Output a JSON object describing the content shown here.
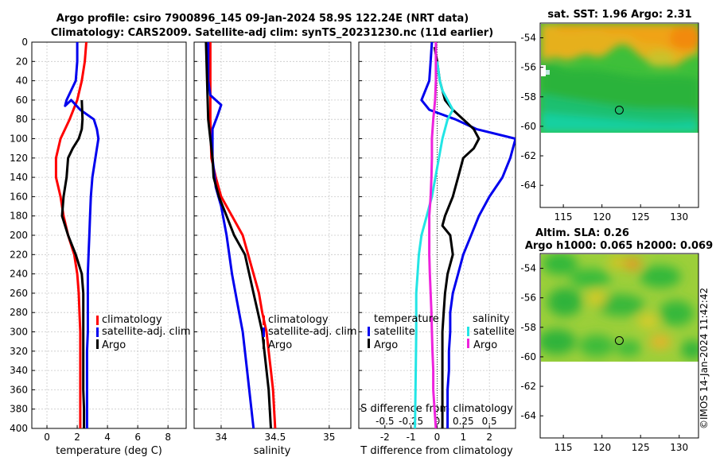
{
  "header": {
    "title_line1": "Argo profile: csiro 7900896_145 09-Jan-2024 58.9S 122.24E (NRT data)",
    "title_line2": "Climatology: CARS2009. Satellite-adj clim: synTS_20231230.nc (11d earlier)"
  },
  "credit": "©IMOS 14-Jan-2024 11:42:42",
  "colors": {
    "climatology": "#ff0000",
    "satellite": "#0000ee",
    "argo": "#000000",
    "sal_satellite": "#22e5e5",
    "sal_argo": "#ee22dd"
  },
  "chart_data": [
    {
      "type": "line",
      "name": "temperature",
      "xlabel": "temperature (deg C)",
      "ylabel": "",
      "xlim": [
        -1,
        9.2
      ],
      "ylim": [
        400,
        0
      ],
      "xticks": [
        0,
        2,
        4,
        6,
        8
      ],
      "yticks": [
        0,
        20,
        40,
        60,
        80,
        100,
        120,
        140,
        160,
        180,
        200,
        220,
        240,
        260,
        280,
        300,
        320,
        340,
        360,
        380,
        400
      ],
      "legend": [
        "climatology",
        "satellite-adj. clim",
        "Argo"
      ],
      "series": [
        {
          "name": "climatology",
          "color": "#ff0000",
          "points": [
            [
              2.6,
              0
            ],
            [
              2.5,
              20
            ],
            [
              2.3,
              40
            ],
            [
              2.0,
              60
            ],
            [
              1.5,
              80
            ],
            [
              0.9,
              100
            ],
            [
              0.6,
              120
            ],
            [
              0.6,
              140
            ],
            [
              0.9,
              160
            ],
            [
              1.1,
              180
            ],
            [
              1.4,
              200
            ],
            [
              1.8,
              220
            ],
            [
              2.0,
              240
            ],
            [
              2.1,
              260
            ],
            [
              2.15,
              280
            ],
            [
              2.2,
              300
            ],
            [
              2.2,
              320
            ],
            [
              2.2,
              340
            ],
            [
              2.2,
              360
            ],
            [
              2.2,
              380
            ],
            [
              2.2,
              400
            ]
          ]
        },
        {
          "name": "satellite-adj. clim",
          "color": "#0000ee",
          "points": [
            [
              2.0,
              0
            ],
            [
              2.0,
              20
            ],
            [
              1.9,
              40
            ],
            [
              1.3,
              60
            ],
            [
              1.2,
              66
            ],
            [
              1.6,
              60
            ],
            [
              2.2,
              70
            ],
            [
              3.1,
              80
            ],
            [
              3.3,
              90
            ],
            [
              3.4,
              100
            ],
            [
              3.2,
              120
            ],
            [
              3.0,
              140
            ],
            [
              2.9,
              160
            ],
            [
              2.85,
              180
            ],
            [
              2.8,
              200
            ],
            [
              2.75,
              220
            ],
            [
              2.7,
              240
            ],
            [
              2.7,
              260
            ],
            [
              2.7,
              280
            ],
            [
              2.7,
              300
            ],
            [
              2.65,
              320
            ],
            [
              2.65,
              340
            ],
            [
              2.65,
              360
            ],
            [
              2.65,
              380
            ],
            [
              2.65,
              400
            ]
          ]
        },
        {
          "name": "Argo",
          "color": "#000000",
          "points": [
            [
              2.3,
              60
            ],
            [
              2.35,
              80
            ],
            [
              2.3,
              90
            ],
            [
              2.1,
              100
            ],
            [
              1.7,
              110
            ],
            [
              1.4,
              120
            ],
            [
              1.3,
              140
            ],
            [
              1.1,
              160
            ],
            [
              1.0,
              180
            ],
            [
              1.4,
              200
            ],
            [
              1.9,
              220
            ],
            [
              2.3,
              240
            ],
            [
              2.4,
              260
            ],
            [
              2.4,
              280
            ],
            [
              2.4,
              300
            ],
            [
              2.4,
              320
            ],
            [
              2.4,
              340
            ],
            [
              2.4,
              360
            ],
            [
              2.45,
              380
            ],
            [
              2.45,
              400
            ]
          ]
        }
      ]
    },
    {
      "type": "line",
      "name": "salinity",
      "xlabel": "salinity",
      "ylabel": "",
      "xlim": [
        33.75,
        35.2
      ],
      "ylim": [
        400,
        0
      ],
      "xticks": [
        34,
        34.5,
        35
      ],
      "legend": [
        "climatology",
        "satellite-adj. clim",
        "Argo"
      ],
      "series": [
        {
          "name": "climatology",
          "color": "#ff0000",
          "points": [
            [
              33.9,
              0
            ],
            [
              33.9,
              20
            ],
            [
              33.9,
              40
            ],
            [
              33.9,
              80
            ],
            [
              33.91,
              120
            ],
            [
              33.95,
              140
            ],
            [
              34.0,
              160
            ],
            [
              34.1,
              180
            ],
            [
              34.2,
              200
            ],
            [
              34.25,
              220
            ],
            [
              34.3,
              240
            ],
            [
              34.35,
              260
            ],
            [
              34.38,
              280
            ],
            [
              34.42,
              300
            ],
            [
              34.44,
              320
            ],
            [
              34.46,
              340
            ],
            [
              34.48,
              360
            ],
            [
              34.49,
              380
            ],
            [
              34.5,
              400
            ]
          ]
        },
        {
          "name": "satellite-adj. clim",
          "color": "#0000ee",
          "points": [
            [
              33.88,
              0
            ],
            [
              33.88,
              20
            ],
            [
              33.88,
              40
            ],
            [
              33.9,
              55
            ],
            [
              34.0,
              65
            ],
            [
              33.97,
              75
            ],
            [
              33.92,
              90
            ],
            [
              33.92,
              120
            ],
            [
              33.95,
              150
            ],
            [
              34.0,
              170
            ],
            [
              34.05,
              200
            ],
            [
              34.1,
              240
            ],
            [
              34.15,
              270
            ],
            [
              34.2,
              300
            ],
            [
              34.24,
              340
            ],
            [
              34.28,
              380
            ],
            [
              34.3,
              400
            ]
          ]
        },
        {
          "name": "Argo",
          "color": "#000000",
          "points": [
            [
              33.86,
              0
            ],
            [
              33.87,
              40
            ],
            [
              33.88,
              80
            ],
            [
              33.9,
              100
            ],
            [
              33.92,
              120
            ],
            [
              33.93,
              140
            ],
            [
              33.98,
              160
            ],
            [
              34.05,
              180
            ],
            [
              34.12,
              200
            ],
            [
              34.22,
              220
            ],
            [
              34.26,
              240
            ],
            [
              34.3,
              260
            ],
            [
              34.34,
              280
            ],
            [
              34.38,
              300
            ],
            [
              34.4,
              320
            ],
            [
              34.42,
              340
            ],
            [
              34.44,
              360
            ],
            [
              34.45,
              380
            ],
            [
              34.46,
              400
            ]
          ]
        }
      ]
    },
    {
      "type": "line",
      "name": "difference",
      "xlabel": "T difference from climatology",
      "top_label": "S difference from climatology",
      "ylabel": "",
      "xlim": [
        -3,
        3
      ],
      "ylim": [
        400,
        0
      ],
      "xticks": [
        -2,
        -1,
        0,
        1,
        2
      ],
      "sticks": [
        "-0.5",
        "-0.25",
        "0",
        "0.25",
        "0.5"
      ],
      "legend_temperature_title": "temperature",
      "legend_salinity_title": "salinity",
      "legend": [
        "satellite",
        "Argo",
        "satellite",
        "Argo"
      ],
      "series": [
        {
          "name": "temperature satellite",
          "color": "#0000ee",
          "points": [
            [
              -0.2,
              0
            ],
            [
              -0.25,
              20
            ],
            [
              -0.3,
              40
            ],
            [
              -0.6,
              60
            ],
            [
              -0.3,
              70
            ],
            [
              0.7,
              80
            ],
            [
              1.5,
              90
            ],
            [
              3.0,
              100
            ],
            [
              2.8,
              120
            ],
            [
              2.5,
              140
            ],
            [
              2.0,
              160
            ],
            [
              1.6,
              180
            ],
            [
              1.3,
              200
            ],
            [
              1.0,
              220
            ],
            [
              0.8,
              240
            ],
            [
              0.6,
              260
            ],
            [
              0.5,
              280
            ],
            [
              0.5,
              300
            ],
            [
              0.45,
              320
            ],
            [
              0.45,
              340
            ],
            [
              0.4,
              360
            ],
            [
              0.4,
              380
            ],
            [
              0.4,
              400
            ]
          ]
        },
        {
          "name": "temperature Argo",
          "color": "#000000",
          "points": [
            [
              -0.1,
              5
            ],
            [
              0.0,
              20
            ],
            [
              0.1,
              40
            ],
            [
              0.3,
              60
            ],
            [
              0.6,
              70
            ],
            [
              1.0,
              80
            ],
            [
              1.4,
              90
            ],
            [
              1.6,
              100
            ],
            [
              1.4,
              110
            ],
            [
              1.0,
              120
            ],
            [
              0.8,
              140
            ],
            [
              0.6,
              160
            ],
            [
              0.3,
              180
            ],
            [
              0.2,
              190
            ],
            [
              0.5,
              200
            ],
            [
              0.6,
              220
            ],
            [
              0.4,
              240
            ],
            [
              0.3,
              260
            ],
            [
              0.25,
              280
            ],
            [
              0.2,
              300
            ],
            [
              0.2,
              320
            ],
            [
              0.2,
              340
            ],
            [
              0.2,
              360
            ],
            [
              0.2,
              380
            ],
            [
              0.2,
              400
            ]
          ]
        },
        {
          "name": "salinity satellite",
          "color": "#22e5e5",
          "points": [
            [
              0.0,
              20
            ],
            [
              0.1,
              40
            ],
            [
              0.2,
              50
            ],
            [
              0.4,
              60
            ],
            [
              0.6,
              70
            ],
            [
              0.4,
              80
            ],
            [
              0.2,
              100
            ],
            [
              0.0,
              130
            ],
            [
              -0.2,
              160
            ],
            [
              -0.4,
              180
            ],
            [
              -0.6,
              200
            ],
            [
              -0.7,
              220
            ],
            [
              -0.75,
              240
            ],
            [
              -0.8,
              260
            ],
            [
              -0.8,
              300
            ],
            [
              -0.82,
              340
            ],
            [
              -0.85,
              400
            ]
          ]
        },
        {
          "name": "salinity Argo",
          "color": "#ee22dd",
          "points": [
            [
              -0.05,
              0
            ],
            [
              -0.05,
              20
            ],
            [
              -0.05,
              40
            ],
            [
              -0.08,
              60
            ],
            [
              -0.15,
              80
            ],
            [
              -0.2,
              100
            ],
            [
              -0.2,
              120
            ],
            [
              -0.22,
              140
            ],
            [
              -0.25,
              160
            ],
            [
              -0.3,
              180
            ],
            [
              -0.3,
              200
            ],
            [
              -0.3,
              220
            ],
            [
              -0.28,
              240
            ],
            [
              -0.25,
              260
            ],
            [
              -0.22,
              280
            ],
            [
              -0.2,
              300
            ],
            [
              -0.18,
              320
            ],
            [
              -0.15,
              340
            ],
            [
              -0.15,
              360
            ],
            [
              -0.1,
              380
            ],
            [
              -0.05,
              400
            ]
          ]
        }
      ]
    },
    {
      "type": "heatmap",
      "name": "sst_map",
      "title": "sat. SST: 1.96 Argo: 2.31",
      "xlim": [
        112,
        132.5
      ],
      "ylim": [
        -65.5,
        -53
      ],
      "xticks": [
        115,
        120,
        125,
        130
      ],
      "yticks": [
        -54,
        -56,
        -58,
        -60,
        -62,
        -64
      ],
      "marker": [
        122.24,
        -58.9
      ]
    },
    {
      "type": "heatmap",
      "name": "sla_map",
      "title_line1": "Altim. SLA: 0.26",
      "title_line2": "Argo h1000: 0.065 h2000: 0.069",
      "xlim": [
        112,
        132.5
      ],
      "ylim": [
        -65.5,
        -53
      ],
      "xticks": [
        115,
        120,
        125,
        130
      ],
      "yticks": [
        -54,
        -56,
        -58,
        -60,
        -62,
        -64
      ],
      "marker": [
        122.24,
        -58.9
      ]
    }
  ]
}
